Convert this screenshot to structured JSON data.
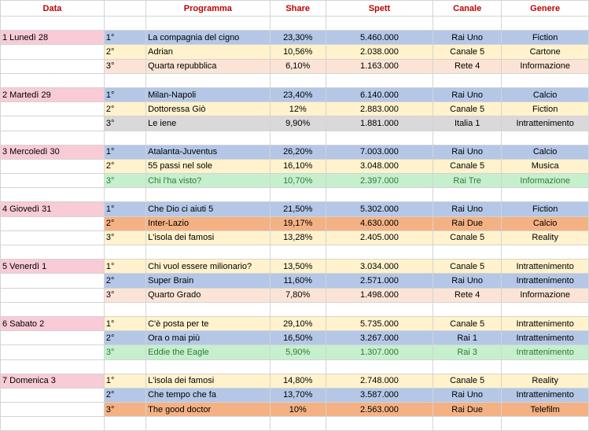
{
  "headers": {
    "data": "Data",
    "programma": "Programma",
    "share": "Share",
    "spett": "Spett",
    "canale": "Canale",
    "genere": "Genere"
  },
  "days": [
    {
      "day": "1 Lunedì 28",
      "rows": [
        {
          "rank": "1°",
          "programma": "La compagnia del cigno",
          "share": "23,30%",
          "spett": "5.460.000",
          "canale": "Rai Uno",
          "genere": "Fiction",
          "color": "blue"
        },
        {
          "rank": "2°",
          "programma": "Adrian",
          "share": "10,56%",
          "spett": "2.038.000",
          "canale": "Canale 5",
          "genere": "Cartone",
          "color": "yellow"
        },
        {
          "rank": "3°",
          "programma": "Quarta repubblica",
          "share": "6,10%",
          "spett": "1.163.000",
          "canale": "Rete 4",
          "genere": "Informazione",
          "color": "peach"
        }
      ]
    },
    {
      "day": "2 Martedì 29",
      "rows": [
        {
          "rank": "1°",
          "programma": "Milan-Napoli",
          "share": "23,40%",
          "spett": "6.140.000",
          "canale": "Rai Uno",
          "genere": "Calcio",
          "color": "blue"
        },
        {
          "rank": "2°",
          "programma": "Dottoressa Giò",
          "share": "12%",
          "spett": "2.883.000",
          "canale": "Canale 5",
          "genere": "Fiction",
          "color": "yellow"
        },
        {
          "rank": "3°",
          "programma": "Le iene",
          "share": "9,90%",
          "spett": "1.881.000",
          "canale": "Italia 1",
          "genere": "Intrattenimento",
          "color": "gray"
        }
      ]
    },
    {
      "day": "3 Mercoledì 30",
      "rows": [
        {
          "rank": "1°",
          "programma": "Atalanta-Juventus",
          "share": "26,20%",
          "spett": "7.003.000",
          "canale": "Rai Uno",
          "genere": "Calcio",
          "color": "blue"
        },
        {
          "rank": "2°",
          "programma": "55 passi nel sole",
          "share": "16,10%",
          "spett": "3.048.000",
          "canale": "Canale 5",
          "genere": "Musica",
          "color": "yellow"
        },
        {
          "rank": "3°",
          "programma": "Chi l'ha visto?",
          "share": "10,70%",
          "spett": "2.397.000",
          "canale": "Rai Tre",
          "genere": "Informazione",
          "color": "green"
        }
      ]
    },
    {
      "day": "4 Giovedì 31",
      "rows": [
        {
          "rank": "1°",
          "programma": "Che Dio ci aiuti 5",
          "share": "21,50%",
          "spett": "5.302.000",
          "canale": "Rai Uno",
          "genere": "Fiction",
          "color": "blue"
        },
        {
          "rank": "2°",
          "programma": "Inter-Lazio",
          "share": "19,17%",
          "spett": "4.630.000",
          "canale": "Rai Due",
          "genere": "Calcio",
          "color": "orange"
        },
        {
          "rank": "3°",
          "programma": "L'isola dei famosi",
          "share": "13,28%",
          "spett": "2.405.000",
          "canale": "Canale 5",
          "genere": "Reality",
          "color": "yellow"
        }
      ]
    },
    {
      "day": "5 Venerdì 1",
      "rows": [
        {
          "rank": "1°",
          "programma": "Chi vuol essere milionario?",
          "share": "13,50%",
          "spett": "3.034.000",
          "canale": "Canale 5",
          "genere": "Intrattenimento",
          "color": "yellow"
        },
        {
          "rank": "2°",
          "programma": "Super Brain",
          "share": "11,60%",
          "spett": "2.571.000",
          "canale": "Rai Uno",
          "genere": "Intrattenimento",
          "color": "blue"
        },
        {
          "rank": "3°",
          "programma": "Quarto Grado",
          "share": "7,80%",
          "spett": "1.498.000",
          "canale": "Rete 4",
          "genere": "Informazione",
          "color": "peach"
        }
      ]
    },
    {
      "day": "6 Sabato 2",
      "rows": [
        {
          "rank": "1°",
          "programma": "C'è posta per te",
          "share": "29,10%",
          "spett": "5.735.000",
          "canale": "Canale 5",
          "genere": "Intrattenimento",
          "color": "yellow"
        },
        {
          "rank": "2°",
          "programma": "Ora o mai più",
          "share": "16,50%",
          "spett": "3.267.000",
          "canale": "Rai 1",
          "genere": "Intrattenimento",
          "color": "blue"
        },
        {
          "rank": "3°",
          "programma": "Eddie the Eagle",
          "share": "5,90%",
          "spett": "1.307.000",
          "canale": "Rai 3",
          "genere": "Intrattenimento",
          "color": "green"
        }
      ]
    },
    {
      "day": "7 Domenica 3",
      "rows": [
        {
          "rank": "1°",
          "programma": "L'isola dei famosi",
          "share": "14,80%",
          "spett": "2.748.000",
          "canale": "Canale 5",
          "genere": "Reality",
          "color": "yellow"
        },
        {
          "rank": "2°",
          "programma": "Che tempo che fa",
          "share": "13,70%",
          "spett": "3.587.000",
          "canale": "Rai Uno",
          "genere": "Intrattenimento",
          "color": "blue"
        },
        {
          "rank": "3°",
          "programma": "The good doctor",
          "share": "10%",
          "spett": "2.563.000",
          "canale": "Rai Due",
          "genere": "Telefilm",
          "color": "orange"
        }
      ]
    }
  ]
}
